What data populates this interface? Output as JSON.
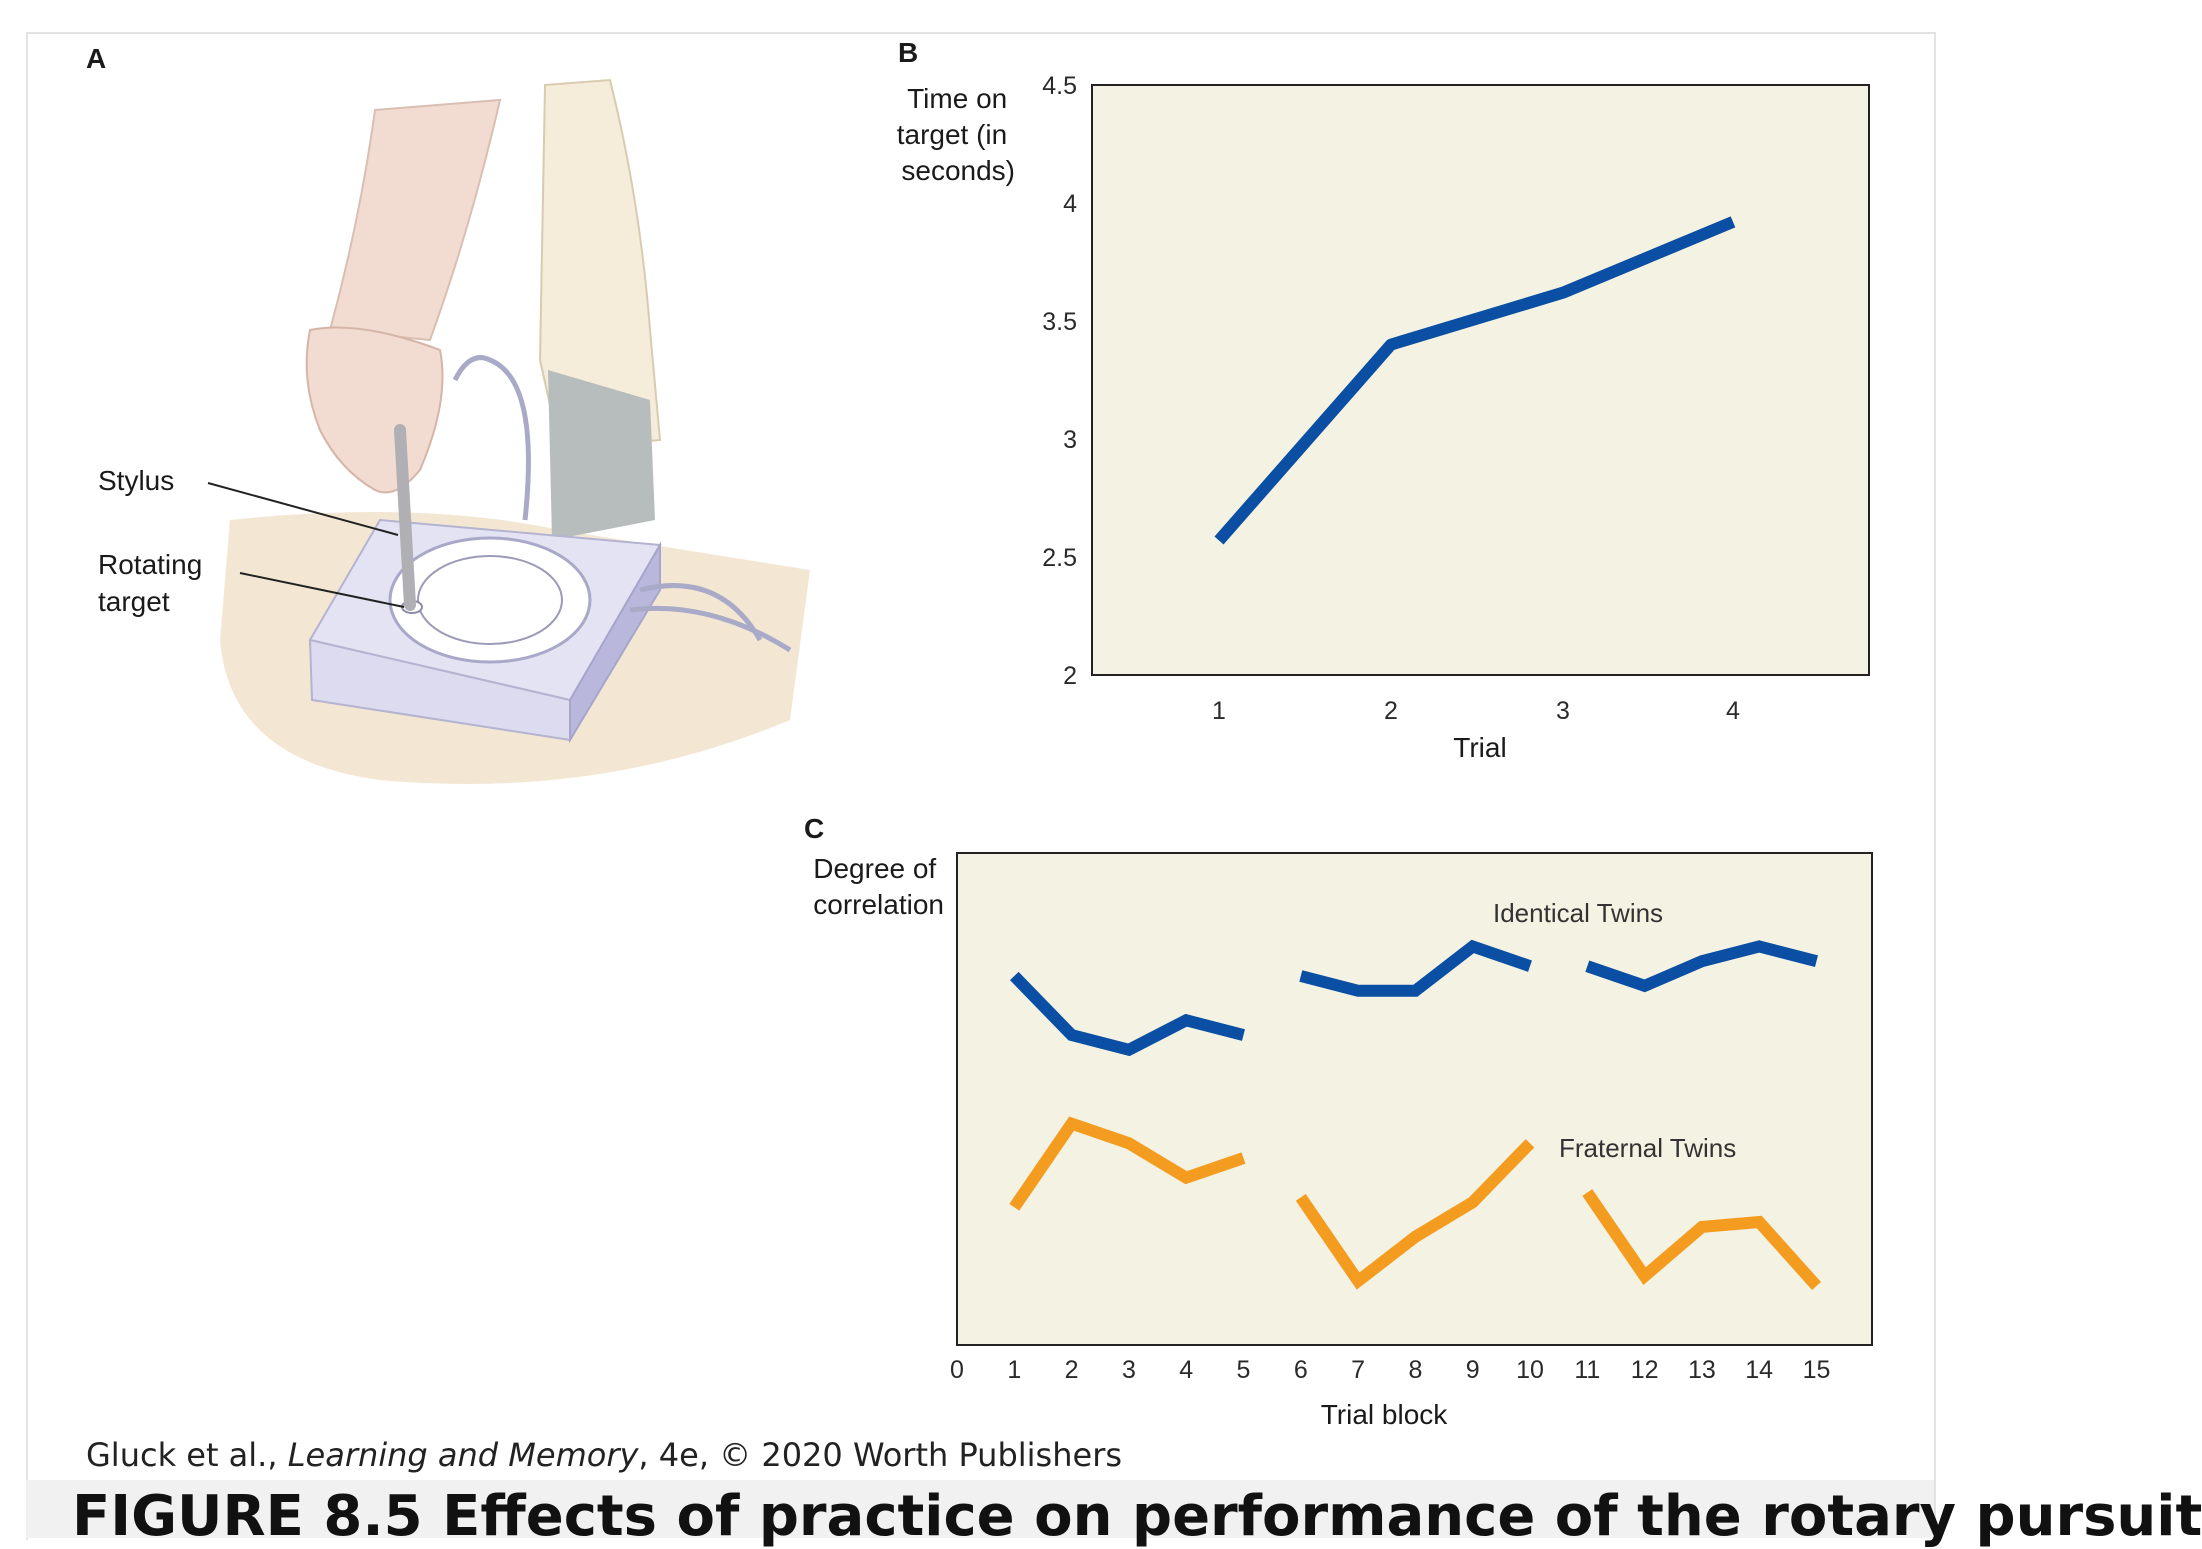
{
  "panel_a": {
    "letter": "A",
    "labels": [
      "Stylus",
      "Rotating target"
    ]
  },
  "chart_data": [
    {
      "panel": "B",
      "type": "line",
      "ylabel": "Time on target (in seconds)",
      "xlabel": "Trial",
      "x": [
        1,
        2,
        3,
        4
      ],
      "yticks": [
        "2",
        "2.5",
        "3",
        "3.5",
        "4",
        "4.5"
      ],
      "ylim": [
        2,
        4.5
      ],
      "series": [
        {
          "values": [
            2.57,
            3.4,
            3.62,
            3.92
          ],
          "color": "#0a4fa3"
        }
      ],
      "grid": false,
      "background": "#f4f2e3"
    },
    {
      "panel": "C",
      "type": "line",
      "ylabel": "Degree of correlation",
      "xlabel": "Trial block",
      "xticks": [
        "0",
        "1",
        "2",
        "3",
        "4",
        "5",
        "6",
        "7",
        "8",
        "9",
        "10",
        "11",
        "12",
        "13",
        "14",
        "15"
      ],
      "xlim": [
        0,
        16
      ],
      "ylim": [
        0,
        1
      ],
      "yaxis_numbers_shown": false,
      "series": [
        {
          "name": "Identical Twins",
          "color": "#0a4fa3",
          "segments": [
            {
              "x": [
                1,
                2,
                3,
                4,
                5
              ],
              "y": [
                0.75,
                0.63,
                0.6,
                0.66,
                0.63
              ]
            },
            {
              "x": [
                6,
                7,
                8,
                9,
                10
              ],
              "y": [
                0.75,
                0.72,
                0.72,
                0.81,
                0.77
              ]
            },
            {
              "x": [
                11,
                12,
                13,
                14,
                15
              ],
              "y": [
                0.77,
                0.73,
                0.78,
                0.81,
                0.78
              ]
            }
          ]
        },
        {
          "name": "Fraternal Twins",
          "color": "#f39c1f",
          "segments": [
            {
              "x": [
                1,
                2,
                3,
                4,
                5
              ],
              "y": [
                0.28,
                0.45,
                0.41,
                0.34,
                0.38
              ]
            },
            {
              "x": [
                6,
                7,
                8,
                9,
                10
              ],
              "y": [
                0.3,
                0.13,
                0.22,
                0.29,
                0.41
              ]
            },
            {
              "x": [
                11,
                12,
                13,
                14,
                15
              ],
              "y": [
                0.31,
                0.14,
                0.24,
                0.25,
                0.12
              ]
            }
          ]
        }
      ],
      "grid": false,
      "background": "#f4f2e3"
    }
  ],
  "credit": {
    "prefix": "Gluck et al., ",
    "book": "Learning and Memory",
    "suffix": ", 4e, © 2020 Worth Publishers"
  },
  "caption": "FIGURE 8.5 Effects of practice on performance of the rotary pursuit"
}
